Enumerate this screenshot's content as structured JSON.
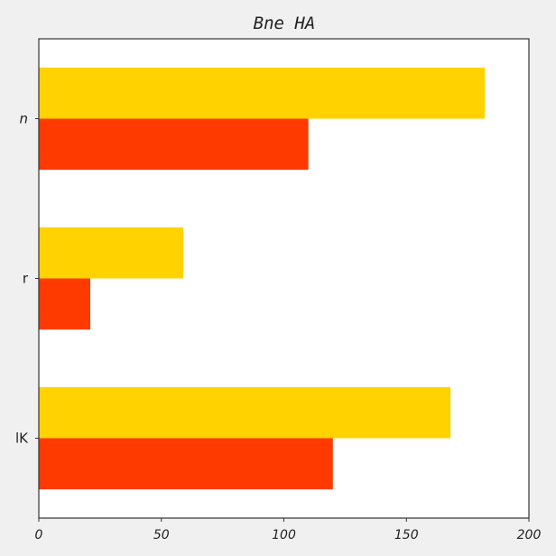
{
  "chart_data": {
    "type": "bar",
    "orientation": "horizontal",
    "title": "Bne HA",
    "xlabel": "",
    "ylabel": "",
    "categories": [
      "n",
      "r",
      "lK"
    ],
    "xlim": [
      0,
      200
    ],
    "xticks": [
      0,
      50,
      100,
      150,
      200
    ],
    "grid": false,
    "series": [
      {
        "color": "#ffd200",
        "values": [
          182,
          59,
          168
        ]
      },
      {
        "color": "#ff3a00",
        "values": [
          110,
          21,
          120
        ]
      }
    ]
  }
}
